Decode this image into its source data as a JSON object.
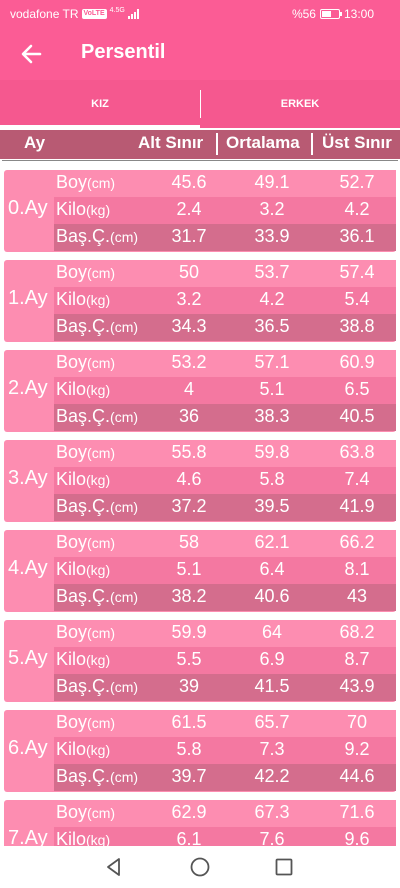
{
  "status": {
    "carrier": "vodafone TR",
    "volte": "VoLTE",
    "network": "4.5G",
    "battery_text": "%56",
    "battery_level": 0.56,
    "time": "13:00"
  },
  "appbar": {
    "title": "Persentil",
    "back_icon": "arrow-left-icon"
  },
  "tabs": [
    {
      "label": "KIZ",
      "selected": true
    },
    {
      "label": "ERKEK",
      "selected": false
    }
  ],
  "header": {
    "month": "Ay",
    "min": "Alt Sınır",
    "avg": "Ortalama",
    "max": "Üst Sınır"
  },
  "labels": {
    "height": {
      "name": "Boy",
      "unit": "(cm)"
    },
    "weight": {
      "name": "Kilo",
      "unit": "(kg)"
    },
    "head": {
      "name": "Baş.Ç.",
      "unit": "(cm)"
    }
  },
  "months": [
    {
      "label": "0.Ay",
      "rows": [
        [
          "45.6",
          "49.1",
          "52.7"
        ],
        [
          "2.4",
          "3.2",
          "4.2"
        ],
        [
          "31.7",
          "33.9",
          "36.1"
        ]
      ]
    },
    {
      "label": "1.Ay",
      "rows": [
        [
          "50",
          "53.7",
          "57.4"
        ],
        [
          "3.2",
          "4.2",
          "5.4"
        ],
        [
          "34.3",
          "36.5",
          "38.8"
        ]
      ]
    },
    {
      "label": "2.Ay",
      "rows": [
        [
          "53.2",
          "57.1",
          "60.9"
        ],
        [
          "4",
          "5.1",
          "6.5"
        ],
        [
          "36",
          "38.3",
          "40.5"
        ]
      ]
    },
    {
      "label": "3.Ay",
      "rows": [
        [
          "55.8",
          "59.8",
          "63.8"
        ],
        [
          "4.6",
          "5.8",
          "7.4"
        ],
        [
          "37.2",
          "39.5",
          "41.9"
        ]
      ]
    },
    {
      "label": "4.Ay",
      "rows": [
        [
          "58",
          "62.1",
          "66.2"
        ],
        [
          "5.1",
          "6.4",
          "8.1"
        ],
        [
          "38.2",
          "40.6",
          "43"
        ]
      ]
    },
    {
      "label": "5.Ay",
      "rows": [
        [
          "59.9",
          "64",
          "68.2"
        ],
        [
          "5.5",
          "6.9",
          "8.7"
        ],
        [
          "39",
          "41.5",
          "43.9"
        ]
      ]
    },
    {
      "label": "6.Ay",
      "rows": [
        [
          "61.5",
          "65.7",
          "70"
        ],
        [
          "5.8",
          "7.3",
          "9.2"
        ],
        [
          "39.7",
          "42.2",
          "44.6"
        ]
      ]
    },
    {
      "label": "7.Ay",
      "rows": [
        [
          "62.9",
          "67.3",
          "71.6"
        ],
        [
          "6.1",
          "7.6",
          "9.6"
        ],
        [
          "",
          "",
          ""
        ]
      ]
    }
  ],
  "navbar": {
    "back_icon": "triangle-back-icon",
    "home_icon": "circle-home-icon",
    "recents_icon": "square-recents-icon"
  },
  "colors": {
    "primary": "#fb5c95",
    "header": "#b85a73",
    "row_light": "#fd8db1",
    "row_mid": "#f478a1",
    "row_dark": "#d46d8d"
  }
}
